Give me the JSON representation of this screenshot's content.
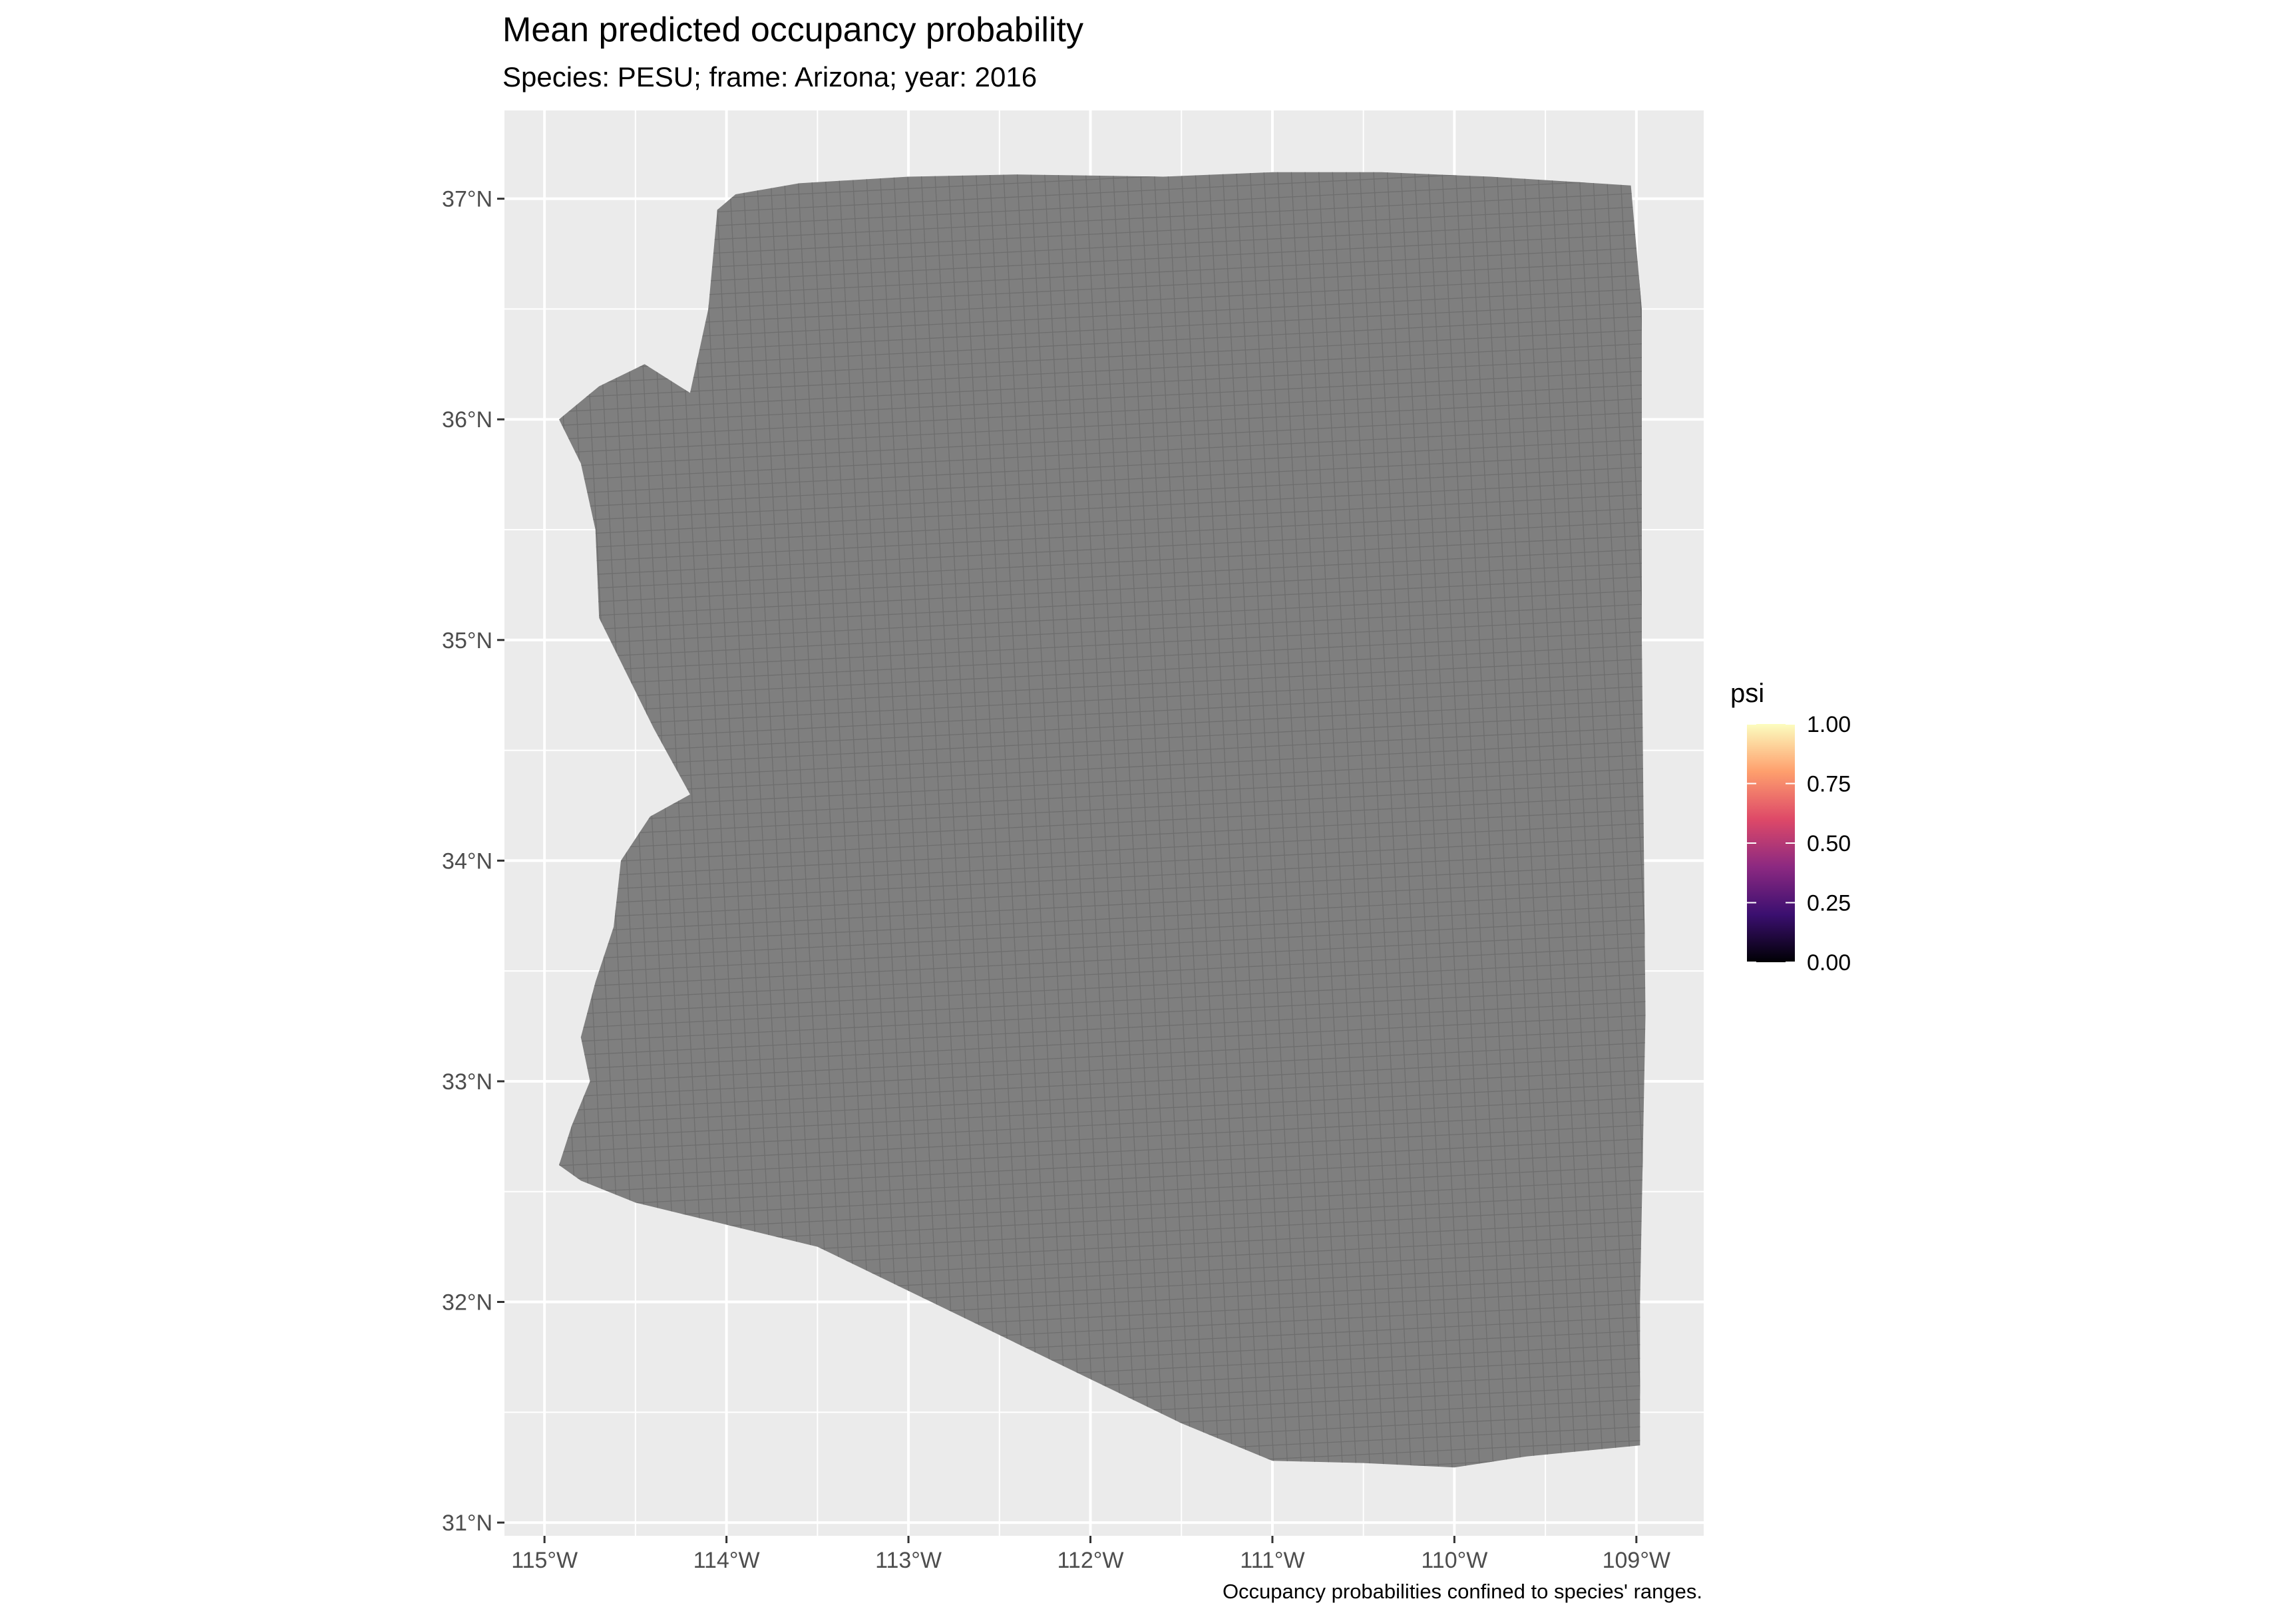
{
  "plot": {
    "title": "Mean predicted occupancy probability",
    "subtitle": "Species: PESU; frame: Arizona; year: 2016",
    "caption": "Occupancy probabilities confined to species' ranges."
  },
  "chart_data": {
    "type": "map",
    "x_ticks": [
      {
        "value": -115,
        "label": "115°W"
      },
      {
        "value": -114,
        "label": "114°W"
      },
      {
        "value": -113,
        "label": "113°W"
      },
      {
        "value": -112,
        "label": "112°W"
      },
      {
        "value": -111,
        "label": "111°W"
      },
      {
        "value": -110,
        "label": "110°W"
      },
      {
        "value": -109,
        "label": "109°W"
      }
    ],
    "y_ticks": [
      {
        "value": 31,
        "label": "31°N"
      },
      {
        "value": 32,
        "label": "32°N"
      },
      {
        "value": 33,
        "label": "33°N"
      },
      {
        "value": 34,
        "label": "34°N"
      },
      {
        "value": 35,
        "label": "35°N"
      },
      {
        "value": 36,
        "label": "36°N"
      },
      {
        "value": 37,
        "label": "37°N"
      }
    ],
    "xlim": [
      -115.22,
      -108.63
    ],
    "ylim": [
      30.94,
      37.4
    ],
    "fill_color": "#7f7f7f",
    "cell_line_color": "#6e6e6e",
    "panel_background": "#ebebeb",
    "grid_color": "#ffffff",
    "region_outline": [
      [
        -114.05,
        36.95
      ],
      [
        -113.95,
        37.02
      ],
      [
        -113.6,
        37.07
      ],
      [
        -113.0,
        37.1
      ],
      [
        -112.4,
        37.11
      ],
      [
        -111.6,
        37.1
      ],
      [
        -111.0,
        37.12
      ],
      [
        -110.4,
        37.12
      ],
      [
        -109.8,
        37.1
      ],
      [
        -109.03,
        37.06
      ],
      [
        -108.97,
        36.5
      ],
      [
        -108.97,
        35.0
      ],
      [
        -108.95,
        33.3
      ],
      [
        -108.98,
        32.0
      ],
      [
        -108.98,
        31.35
      ],
      [
        -109.6,
        31.3
      ],
      [
        -110.0,
        31.25
      ],
      [
        -110.5,
        31.27
      ],
      [
        -111.0,
        31.28
      ],
      [
        -111.5,
        31.45
      ],
      [
        -112.0,
        31.65
      ],
      [
        -112.5,
        31.85
      ],
      [
        -113.0,
        32.05
      ],
      [
        -113.5,
        32.25
      ],
      [
        -114.0,
        32.35
      ],
      [
        -114.5,
        32.45
      ],
      [
        -114.8,
        32.55
      ],
      [
        -114.92,
        32.62
      ],
      [
        -114.85,
        32.8
      ],
      [
        -114.75,
        33.0
      ],
      [
        -114.8,
        33.2
      ],
      [
        -114.72,
        33.45
      ],
      [
        -114.62,
        33.7
      ],
      [
        -114.58,
        34.0
      ],
      [
        -114.42,
        34.2
      ],
      [
        -114.2,
        34.3
      ],
      [
        -114.4,
        34.6
      ],
      [
        -114.55,
        34.85
      ],
      [
        -114.7,
        35.1
      ],
      [
        -114.72,
        35.5
      ],
      [
        -114.8,
        35.8
      ],
      [
        -114.92,
        36.0
      ],
      [
        -114.7,
        36.15
      ],
      [
        -114.45,
        36.25
      ],
      [
        -114.2,
        36.12
      ],
      [
        -114.1,
        36.5
      ],
      [
        -114.05,
        36.95
      ]
    ],
    "legend": {
      "title": "psi",
      "position": "right",
      "colors": [
        "#000004",
        "#3b0f70",
        "#8c2981",
        "#de4968",
        "#fe9f6d",
        "#fcfdbf"
      ],
      "breaks": [
        {
          "value": 1.0,
          "label": "1.00"
        },
        {
          "value": 0.75,
          "label": "0.75"
        },
        {
          "value": 0.5,
          "label": "0.50"
        },
        {
          "value": 0.25,
          "label": "0.25"
        },
        {
          "value": 0.0,
          "label": "0.00"
        }
      ]
    }
  }
}
